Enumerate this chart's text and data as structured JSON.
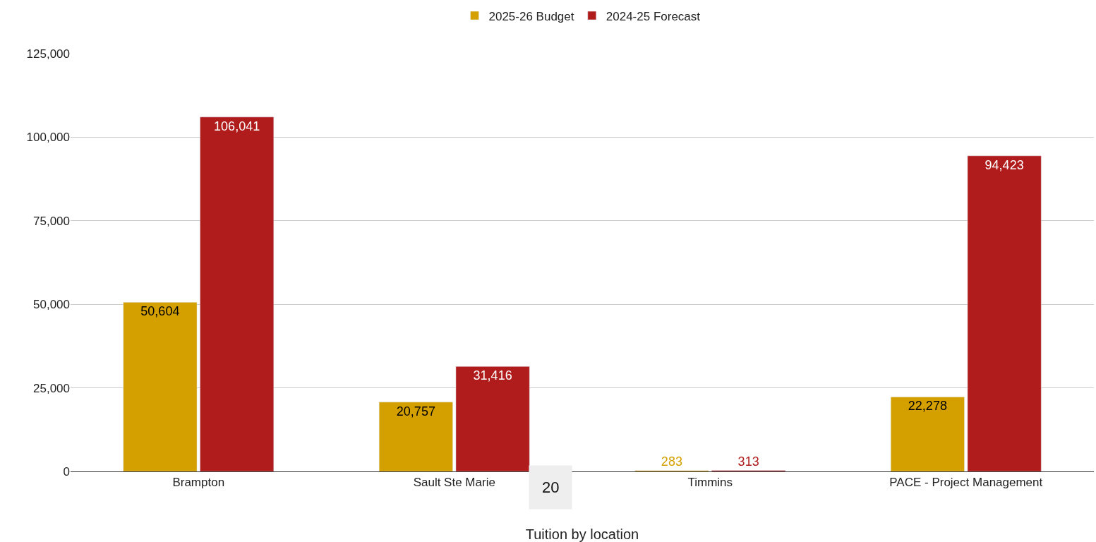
{
  "chart_data": {
    "type": "bar",
    "xlabel": "Tuition by location",
    "categories": [
      "Brampton",
      "Sault Ste Marie",
      "Timmins",
      "PACE - Project Management"
    ],
    "series": [
      {
        "name": "2025-26 Budget",
        "color": "#d4a000",
        "values": [
          50604,
          20757,
          283,
          22278
        ],
        "value_labels": [
          "50,604",
          "20,757",
          "283",
          "22,278"
        ]
      },
      {
        "name": "2024-25 Forecast",
        "color": "#b01c1c",
        "values": [
          106041,
          31416,
          313,
          94423
        ],
        "value_labels": [
          "106,041",
          "31,416",
          "313",
          "94,423"
        ]
      }
    ],
    "ylim": [
      0,
      125000
    ],
    "yticks": [
      {
        "value": 0,
        "label": "0"
      },
      {
        "value": 25000,
        "label": "25,000"
      },
      {
        "value": 50000,
        "label": "50,000"
      },
      {
        "value": 75000,
        "label": "75,000"
      },
      {
        "value": 100000,
        "label": "100,000"
      },
      {
        "value": 125000,
        "label": "125,000"
      }
    ],
    "grid": "y",
    "legend": "top",
    "annotations": [
      "20"
    ]
  }
}
